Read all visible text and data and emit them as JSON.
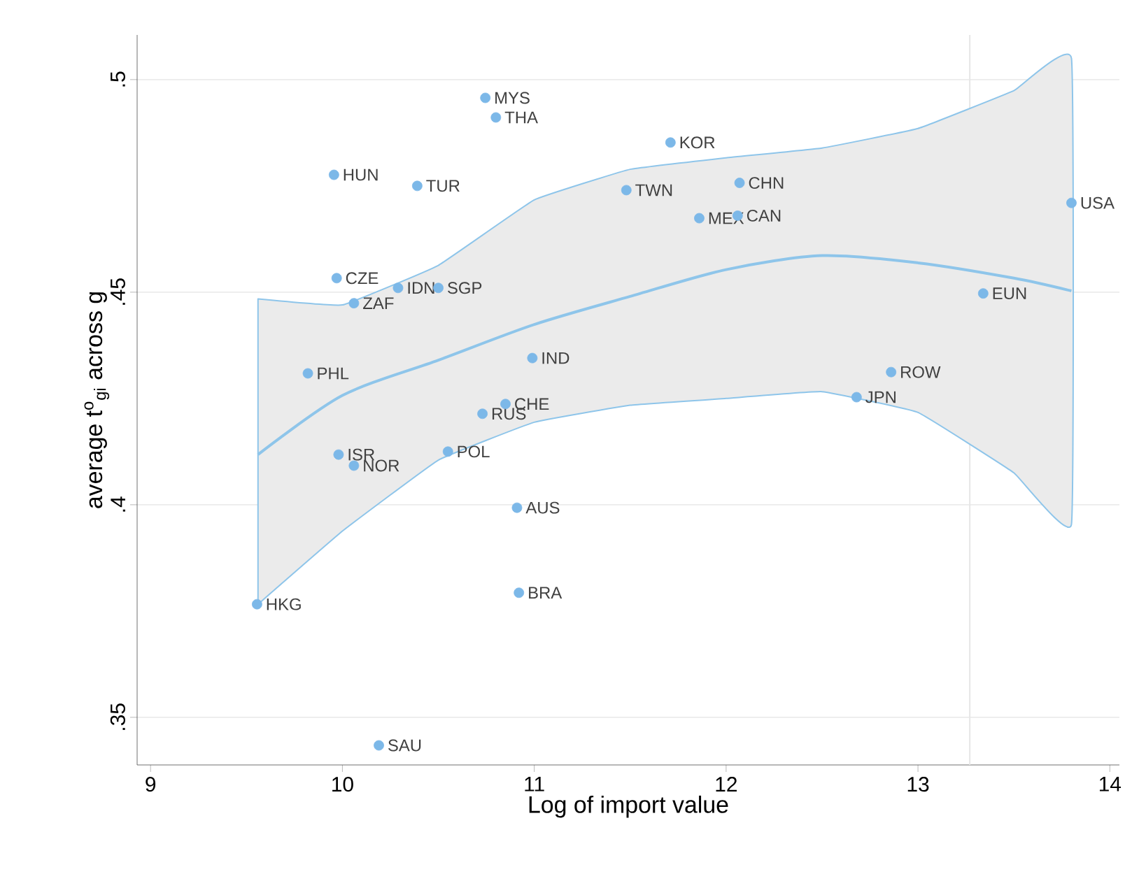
{
  "chart_data": {
    "type": "scatter",
    "xlabel": "Log of import value",
    "ylabel": "average t$^{o}$$_{gi}$ across g",
    "xlim": [
      8.93,
      14.05
    ],
    "ylim": [
      0.3388,
      0.5105
    ],
    "xticks": [
      9,
      10,
      11,
      12,
      13,
      14
    ],
    "yticks": [
      {
        "value": 0.35,
        "label": ".35"
      },
      {
        "value": 0.4,
        "label": ".4"
      },
      {
        "value": 0.45,
        "label": ".45"
      },
      {
        "value": 0.5,
        "label": ".5"
      }
    ],
    "grid": "y",
    "ref_lines": [
      {
        "axis": "x",
        "value": 13.27,
        "color": "#e6e6e6"
      }
    ],
    "series": [
      {
        "type": "line",
        "marker": "none",
        "color": "#8ec5ea",
        "x": [
          9.56,
          10,
          10.5,
          11,
          11.5,
          12,
          12.5,
          13,
          13.5,
          13.8
        ],
        "values": [
          0.4118,
          0.4257,
          0.434,
          0.4424,
          0.449,
          0.4553,
          0.4586,
          0.4569,
          0.4533,
          0.4503
        ],
        "lower": [
          0.3766,
          0.3938,
          0.4105,
          0.4194,
          0.4234,
          0.425,
          0.4266,
          0.4217,
          0.4075,
          0.3954
        ],
        "upper": [
          0.4484,
          0.447,
          0.4563,
          0.4717,
          0.4789,
          0.4816,
          0.4839,
          0.4885,
          0.4974,
          0.505
        ]
      },
      {
        "marker": "circle",
        "color": "#7cb8e8",
        "x": [
          10.745,
          10.8,
          11.71,
          9.956,
          10.39,
          11.48,
          12.07,
          12.06,
          11.86,
          13.8,
          9.97,
          10.29,
          10.5,
          10.06,
          13.34,
          10.99,
          9.82,
          12.86,
          12.68,
          10.85,
          10.73,
          9.98,
          10.55,
          10.06,
          10.91,
          10.92,
          9.555,
          10.19
        ],
        "values": [
          0.4957,
          0.4911,
          0.4852,
          0.4776,
          0.475,
          0.474,
          0.4757,
          0.468,
          0.4674,
          0.471,
          0.4533,
          0.451,
          0.451,
          0.4474,
          0.4497,
          0.4345,
          0.4309,
          0.4312,
          0.4253,
          0.4237,
          0.4214,
          0.4118,
          0.4125,
          0.4092,
          0.3993,
          0.3793,
          0.3766,
          0.3434
        ]
      }
    ],
    "annotations": [
      {
        "text": "MYS",
        "x": 10.745,
        "y": 0.4957
      },
      {
        "text": "THA",
        "x": 10.8,
        "y": 0.4911
      },
      {
        "text": "KOR",
        "x": 11.71,
        "y": 0.4852
      },
      {
        "text": "HUN",
        "x": 9.956,
        "y": 0.4776
      },
      {
        "text": "TUR",
        "x": 10.39,
        "y": 0.475
      },
      {
        "text": "TWN",
        "x": 11.48,
        "y": 0.474
      },
      {
        "text": "CHN",
        "x": 12.07,
        "y": 0.4757
      },
      {
        "text": "CAN",
        "x": 12.06,
        "y": 0.468
      },
      {
        "text": "MEX",
        "x": 11.86,
        "y": 0.4674
      },
      {
        "text": "USA",
        "x": 13.8,
        "y": 0.471
      },
      {
        "text": "CZE",
        "x": 9.97,
        "y": 0.4533
      },
      {
        "text": "IDN",
        "x": 10.29,
        "y": 0.451
      },
      {
        "text": "SGP",
        "x": 10.5,
        "y": 0.451
      },
      {
        "text": "ZAF",
        "x": 10.06,
        "y": 0.4474
      },
      {
        "text": "EUN",
        "x": 13.34,
        "y": 0.4497
      },
      {
        "text": "IND",
        "x": 10.99,
        "y": 0.4345
      },
      {
        "text": "PHL",
        "x": 9.82,
        "y": 0.4309
      },
      {
        "text": "ROW",
        "x": 12.86,
        "y": 0.4312
      },
      {
        "text": "JPN",
        "x": 12.68,
        "y": 0.4253
      },
      {
        "text": "CHE",
        "x": 10.85,
        "y": 0.4237
      },
      {
        "text": "RUS",
        "x": 10.73,
        "y": 0.4214
      },
      {
        "text": "ISR",
        "x": 9.98,
        "y": 0.4118
      },
      {
        "text": "POL",
        "x": 10.55,
        "y": 0.4125
      },
      {
        "text": "NOR",
        "x": 10.06,
        "y": 0.4092
      },
      {
        "text": "AUS",
        "x": 10.91,
        "y": 0.3993
      },
      {
        "text": "BRA",
        "x": 10.92,
        "y": 0.3793
      },
      {
        "text": "HKG",
        "x": 9.555,
        "y": 0.3766
      },
      {
        "text": "SAU",
        "x": 10.19,
        "y": 0.3434
      }
    ]
  }
}
